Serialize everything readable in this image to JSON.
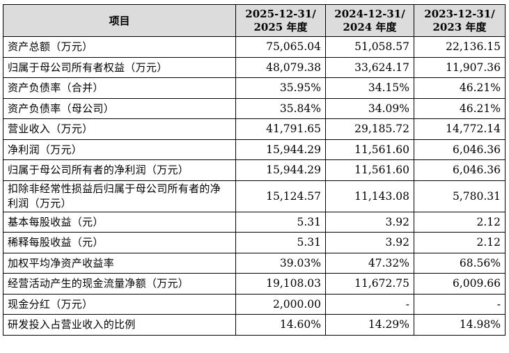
{
  "table": {
    "header": {
      "item": "项目",
      "col1_line1": "2025-12-31/",
      "col1_line2": "2025 年度",
      "col2_line1": "2024-12-31/",
      "col2_line2": "2024 年度",
      "col3_line1": "2023-12-31/",
      "col3_line2": "2023 年度"
    },
    "rows": [
      {
        "label": "资产总额（万元）",
        "v2025": "75,065.04",
        "v2024": "51,058.57",
        "v2023": "22,136.15"
      },
      {
        "label": "归属于母公司所有者权益（万元）",
        "v2025": "48,079.38",
        "v2024": "33,624.17",
        "v2023": "11,907.36"
      },
      {
        "label": "资产负债率（合并）",
        "v2025": "35.95%",
        "v2024": "34.15%",
        "v2023": "46.21%"
      },
      {
        "label": "资产负债率（母公司）",
        "v2025": "35.84%",
        "v2024": "34.09%",
        "v2023": "46.21%"
      },
      {
        "label": "营业收入（万元）",
        "v2025": "41,791.65",
        "v2024": "29,185.72",
        "v2023": "14,772.14"
      },
      {
        "label": "净利润（万元）",
        "v2025": "15,944.29",
        "v2024": "11,561.60",
        "v2023": "6,046.36"
      },
      {
        "label": "归属于母公司所有者的净利润（万元）",
        "v2025": "15,944.29",
        "v2024": "11,561.60",
        "v2023": "6,046.36"
      },
      {
        "label": "扣除非经常性损益后归属于母公司所有者的净利润（万元）",
        "v2025": "15,124.57",
        "v2024": "11,143.08",
        "v2023": "5,780.31"
      },
      {
        "label": "基本每股收益（元）",
        "v2025": "5.31",
        "v2024": "3.92",
        "v2023": "2.12"
      },
      {
        "label": "稀释每股收益（元）",
        "v2025": "5.31",
        "v2024": "3.92",
        "v2023": "2.12"
      },
      {
        "label": "加权平均净资产收益率",
        "v2025": "39.03%",
        "v2024": "47.32%",
        "v2023": "68.56%"
      },
      {
        "label": "经营活动产生的现金流量净额（万元）",
        "v2025": "19,108.03",
        "v2024": "11,672.75",
        "v2023": "6,009.66"
      },
      {
        "label": "现金分红（万元）",
        "v2025": "2,000.00",
        "v2024": "-",
        "v2023": "-"
      },
      {
        "label": "研发投入占营业收入的比例",
        "v2025": "14.60%",
        "v2024": "14.29%",
        "v2023": "14.98%"
      }
    ]
  }
}
